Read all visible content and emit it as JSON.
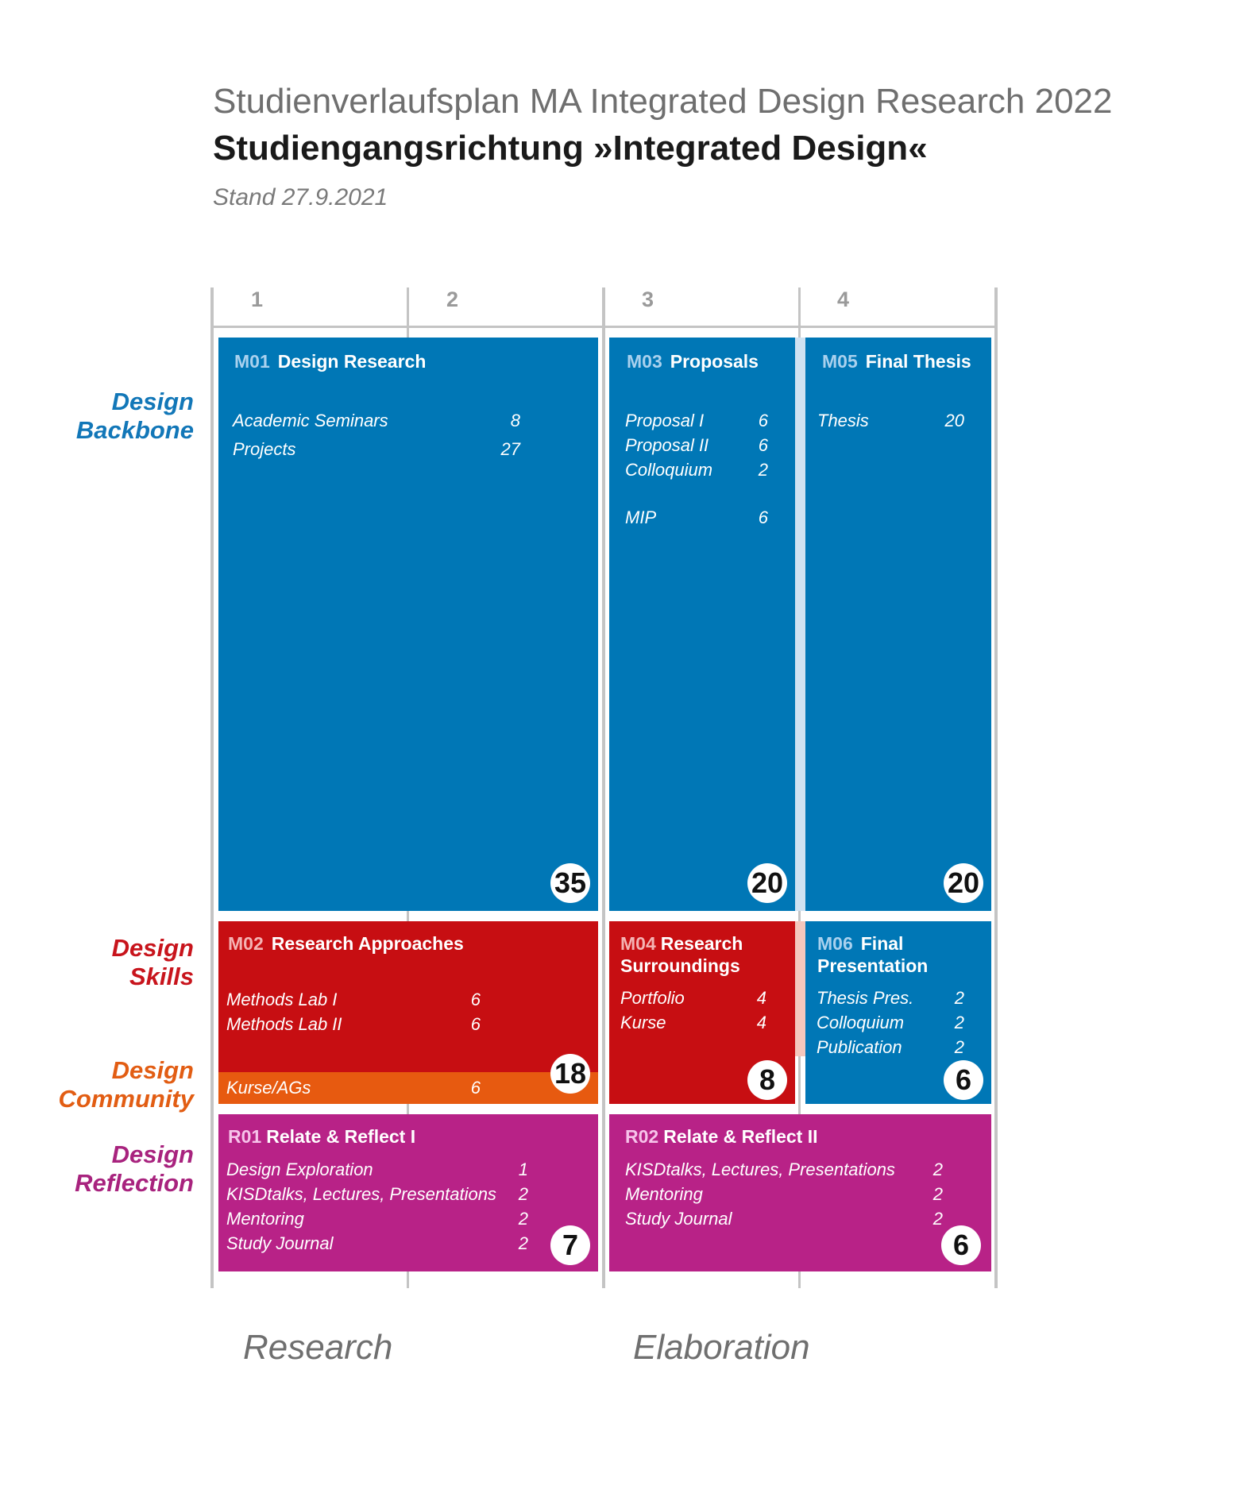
{
  "header": {
    "title": "Studienverlaufsplan MA Integrated Design Research 2022",
    "subtitle": "Studiengangsrichtung »Integrated Design«",
    "date": "Stand 27.9.2021"
  },
  "semesters": [
    "1",
    "2",
    "3",
    "4"
  ],
  "row_labels": {
    "backbone": [
      "Design",
      "Backbone"
    ],
    "skills": [
      "Design",
      "Skills"
    ],
    "community": [
      "Design",
      "Community"
    ],
    "reflection": [
      "Design",
      "Reflection"
    ]
  },
  "colors": {
    "blue": "#0077b6",
    "red": "#c70e12",
    "orange": "#e75a10",
    "purple": "#b82287",
    "label_blue": "#1277b8",
    "label_red": "#c8141c",
    "label_orange": "#e25d13",
    "label_purple": "#a8237e"
  },
  "modules": {
    "m01": {
      "code": "M01",
      "title": "Design Research",
      "items": [
        {
          "name": "Academic Seminars",
          "pts": "8"
        },
        {
          "name": "Projects",
          "pts": "27"
        }
      ],
      "total": "35"
    },
    "m03": {
      "code": "M03",
      "title": "Proposals",
      "items": [
        {
          "name": "Proposal I",
          "pts": "6"
        },
        {
          "name": "Proposal II",
          "pts": "6"
        },
        {
          "name": "Colloquium",
          "pts": "2"
        },
        {
          "name": "MIP",
          "pts": "6"
        }
      ],
      "total": "20"
    },
    "m05": {
      "code": "M05",
      "title": "Final Thesis",
      "items": [
        {
          "name": "Thesis",
          "pts": "20"
        }
      ],
      "total": "20"
    },
    "m02": {
      "code": "M02",
      "title": "Research Approaches",
      "items": [
        {
          "name": "Methods Lab I",
          "pts": "6"
        },
        {
          "name": "Methods Lab II",
          "pts": "6"
        }
      ],
      "community_item": {
        "name": "Kurse/AGs",
        "pts": "6"
      },
      "total": "18"
    },
    "m04": {
      "code": "M04",
      "title_line1": "Research",
      "title_line2": "Surroundings",
      "items": [
        {
          "name": "Portfolio",
          "pts": "4"
        },
        {
          "name": "Kurse",
          "pts": "4"
        }
      ],
      "total": "8"
    },
    "m06": {
      "code": "M06",
      "title_line1": "Final",
      "title_line2": "Presentation",
      "items": [
        {
          "name": "Thesis Pres.",
          "pts": "2"
        },
        {
          "name": "Colloquium",
          "pts": "2"
        },
        {
          "name": "Publication",
          "pts": "2"
        }
      ],
      "total": "6"
    },
    "r01": {
      "code": "R01",
      "title": "Relate & Reflect I",
      "items": [
        {
          "name": "Design Exploration",
          "pts": "1"
        },
        {
          "name": "KISDtalks, Lectures, Presentations",
          "pts": "2"
        },
        {
          "name": "Mentoring",
          "pts": "2"
        },
        {
          "name": "Study Journal",
          "pts": "2"
        }
      ],
      "total": "7"
    },
    "r02": {
      "code": "R02",
      "title": "Relate & Reflect II",
      "items": [
        {
          "name": "KISDtalks, Lectures, Presentations",
          "pts": "2"
        },
        {
          "name": "Mentoring",
          "pts": "2"
        },
        {
          "name": "Study Journal",
          "pts": "2"
        }
      ],
      "total": "6"
    }
  },
  "phases": [
    "Research",
    "Elaboration"
  ]
}
